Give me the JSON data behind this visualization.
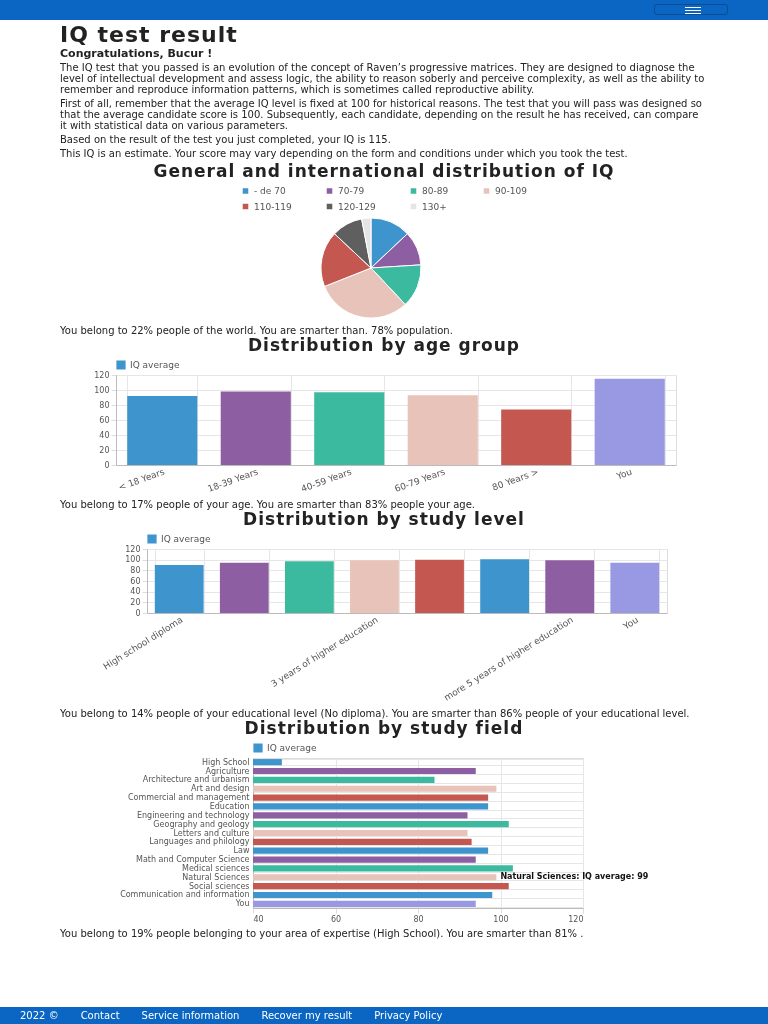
{
  "chart_data": [
    {
      "type": "pie",
      "title": "General and international distribution of IQ",
      "legend": "top",
      "categories": [
        "- de 70",
        "70-79",
        "80-89",
        "90-109",
        "110-119",
        "120-129",
        "130+"
      ],
      "values": [
        13,
        11,
        14,
        31,
        18,
        10,
        3
      ],
      "colors": [
        "#3e95cd",
        "#8e5ea2",
        "#3cba9f",
        "#e8c3b9",
        "#c45850",
        "#5f5f5f",
        "#e5e5e5"
      ],
      "annotations": [
        "IQ test result",
        "Congratulations, Bucur !",
        "The IQ test that you passed is an evolution of the concept of Raven’s progressive matrices. They are designed to diagnose the level of intellectual development and assess logic, the ability to reason soberly and perceive complexity, as well as the ability to remember and reproduce information patterns, which is sometimes called reproductive ability.",
        "First of all, remember that the average IQ level is fixed at 100 for historical reasons. The test that you will pass was designed so that the average candidate score is 100. Subsequently, each candidate, depending on the result he has received, can compare it with statistical data on various parameters.",
        "Based on the result of the test you just completed, your IQ is 115.",
        "This IQ is an estimate. Your score may vary depending on the form and conditions under which you took the test.",
        "You belong to 22% people of the world. You are smarter than. 78% population."
      ]
    },
    {
      "type": "bar",
      "title": "Distribution by age group",
      "legend": "top",
      "grid": true,
      "categories": [
        "< 18 Years",
        "18-39 Years",
        "40-59 Years",
        "60-79 Years",
        "80 Years >",
        "You"
      ],
      "series": [
        {
          "name": "IQ average",
          "color": "#3e95cd",
          "colors": [
            "#3e95cd",
            "#8e5ea2",
            "#3cba9f",
            "#e8c3b9",
            "#c45850",
            "#9999e3"
          ],
          "values": [
            92,
            98,
            97,
            93,
            74,
            115
          ]
        }
      ],
      "ylim": [
        0,
        120
      ],
      "yticks": [
        0,
        20,
        40,
        60,
        80,
        100,
        120
      ],
      "annotations": [
        "You belong to 17% people of your age. You are smarter than 83% people your age."
      ]
    },
    {
      "type": "bar",
      "title": "Distribution by study level",
      "legend": "top",
      "grid": true,
      "categories": [
        "High school diploma",
        null,
        null,
        "3 years of higher education",
        null,
        null,
        "more 5 years of higher education",
        "You"
      ],
      "series": [
        {
          "name": "IQ average",
          "color": "#3e95cd",
          "colors": [
            "#3e95cd",
            "#8e5ea2",
            "#3cba9f",
            "#e8c3b9",
            "#c45850",
            "#3e95cd",
            "#8e5ea2",
            "#9999e3"
          ],
          "values": [
            90,
            94,
            97,
            99,
            100,
            101,
            99,
            94
          ]
        }
      ],
      "ylim": [
        0,
        120
      ],
      "yticks": [
        0,
        20,
        40,
        60,
        80,
        100,
        120
      ],
      "annotations": [
        "You belong to 14% people of your educational level (No diploma). You are smarter than 86% people of your educational level."
      ]
    },
    {
      "type": "bar",
      "title": "Distribution by study field",
      "legend": "top",
      "grid": true,
      "orientation": "horizontal",
      "categories": [
        "High School",
        "Agriculture",
        "Architecture and urbanism",
        "Art and design",
        "Commercial and management",
        "Education",
        "Engineering and technology",
        "Geography and geology",
        "Letters and culture",
        "Languages and philology",
        "Law",
        "Math and Computer Science",
        "Medical sciences",
        "Natural Sciences",
        "Social sciences",
        "Communication and information",
        "You"
      ],
      "series": [
        {
          "name": "IQ average",
          "color": "#3e95cd",
          "colors": [
            "#3e95cd",
            "#8e5ea2",
            "#3cba9f",
            "#e8c3b9",
            "#c45850",
            "#3e95cd",
            "#8e5ea2",
            "#3cba9f",
            "#e8c3b9",
            "#c45850",
            "#3e95cd",
            "#8e5ea2",
            "#3cba9f",
            "#e8c3b9",
            "#c45850",
            "#3e95cd",
            "#9999e3"
          ],
          "values": [
            47,
            94,
            84,
            99,
            97,
            97,
            92,
            102,
            92,
            93,
            97,
            94,
            103,
            99,
            102,
            98,
            94
          ]
        }
      ],
      "xlim": [
        40,
        120
      ],
      "xticks": [
        40,
        60,
        80,
        100,
        120
      ],
      "annotations": [
        "You belong to 19% people belonging to your area of expertise (High School). You are smarter than 81% .",
        {
          "text": "Natural Sciences: IQ average: 99",
          "x": 99,
          "y": "Natural Sciences"
        },
        "2022 ©",
        "Contact",
        "Service information",
        "Recover my result",
        "Privacy Policy"
      ]
    }
  ]
}
